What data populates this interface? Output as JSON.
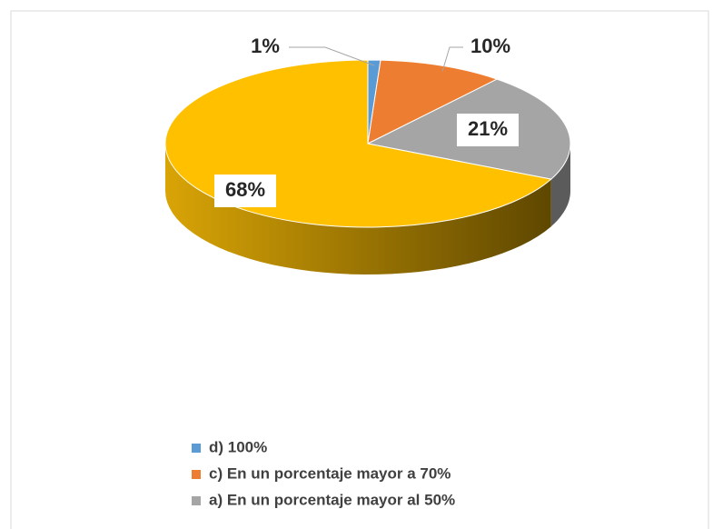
{
  "chart_data": {
    "type": "pie",
    "three_d": true,
    "categories": [
      "d) 100%",
      "c) En un porcentaje mayor a 70%",
      "a) En un porcentaje mayor al 50%",
      null
    ],
    "values": [
      1,
      10,
      21,
      68
    ],
    "value_labels": [
      "1%",
      "10%",
      "21%",
      "68%"
    ],
    "colors": [
      "#5b9bd5",
      "#ed7d31",
      "#a5a5a5",
      "#ffc000"
    ],
    "legend": "bottom"
  }
}
